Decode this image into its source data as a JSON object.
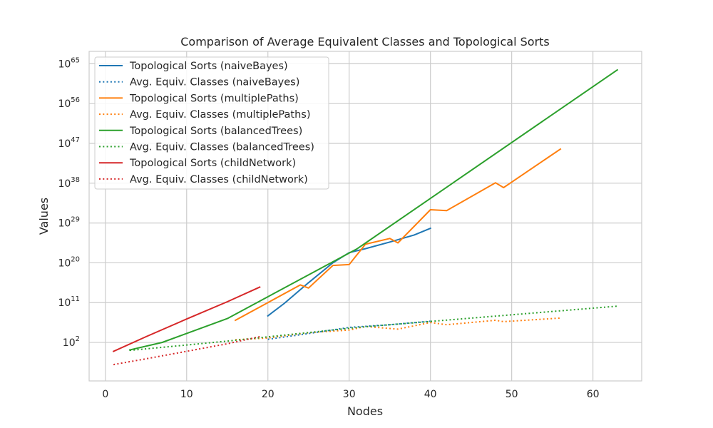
{
  "chart_data": {
    "type": "line",
    "title": "Comparison of Average Equivalent Classes and Topological Sorts",
    "xlabel": "Nodes",
    "ylabel": "Values",
    "yscale": "log",
    "xlim": [
      -2,
      66
    ],
    "ylim_log10": [
      -6.7,
      67.8
    ],
    "grid": true,
    "legend_position": "top-left",
    "xticks": [
      0,
      10,
      20,
      30,
      40,
      50,
      60
    ],
    "yticks": [
      {
        "exp": 2,
        "base": "10",
        "power": "2"
      },
      {
        "exp": 11,
        "base": "10",
        "power": "11"
      },
      {
        "exp": 20,
        "base": "10",
        "power": "20"
      },
      {
        "exp": 29,
        "base": "10",
        "power": "29"
      },
      {
        "exp": 38,
        "base": "10",
        "power": "38"
      },
      {
        "exp": 47,
        "base": "10",
        "power": "47"
      },
      {
        "exp": 56,
        "base": "10",
        "power": "56"
      },
      {
        "exp": 65,
        "base": "10",
        "power": "65"
      }
    ],
    "series": [
      {
        "name": "Topological Sorts (naiveBayes)",
        "color": "#1f77b4",
        "dash": "solid",
        "x": [
          20,
          22,
          25,
          28,
          30,
          32,
          35,
          38,
          40
        ],
        "log10_y": [
          8.0,
          10.8,
          15.5,
          20.0,
          22.3,
          23.2,
          24.7,
          26.3,
          27.8
        ]
      },
      {
        "name": "Avg. Equiv. Classes (naiveBayes)",
        "color": "#1f77b4",
        "dash": "dotted",
        "x": [
          20,
          25,
          30,
          35,
          40
        ],
        "log10_y": [
          2.7,
          4.0,
          5.4,
          6.0,
          6.8
        ]
      },
      {
        "name": "Topological Sorts (multiplePaths)",
        "color": "#ff7f0e",
        "dash": "solid",
        "x": [
          16,
          20,
          24,
          25,
          28,
          30,
          32,
          35,
          36,
          40,
          42,
          48,
          49,
          56
        ],
        "log10_y": [
          7.0,
          11.0,
          15.0,
          14.3,
          19.4,
          19.6,
          24.2,
          25.5,
          24.5,
          32.0,
          31.8,
          38.1,
          37.0,
          45.7
        ]
      },
      {
        "name": "Avg. Equiv. Classes (multiplePaths)",
        "color": "#ff7f0e",
        "dash": "dotted",
        "x": [
          16,
          20,
          25,
          30,
          32,
          36,
          40,
          42,
          48,
          49,
          56
        ],
        "log10_y": [
          2.6,
          3.0,
          4.2,
          4.8,
          5.6,
          5.0,
          6.5,
          6.0,
          7.0,
          6.7,
          7.5
        ]
      },
      {
        "name": "Topological Sorts (balancedTrees)",
        "color": "#2ca02c",
        "dash": "solid",
        "x": [
          3,
          7,
          15,
          31,
          63
        ],
        "log10_y": [
          0.3,
          2.0,
          7.4,
          23.2,
          63.6
        ]
      },
      {
        "name": "Avg. Equiv. Classes (balancedTrees)",
        "color": "#2ca02c",
        "dash": "dotted",
        "x": [
          3,
          7,
          15,
          31,
          63
        ],
        "log10_y": [
          0.2,
          0.9,
          2.3,
          5.4,
          10.2
        ]
      },
      {
        "name": "Topological Sorts (childNetwork)",
        "color": "#d62728",
        "dash": "solid",
        "x": [
          1,
          5,
          10,
          15,
          19
        ],
        "log10_y": [
          0.0,
          3.3,
          7.3,
          11.2,
          14.5
        ]
      },
      {
        "name": "Avg. Equiv. Classes (childNetwork)",
        "color": "#d62728",
        "dash": "dotted",
        "x": [
          1,
          5,
          10,
          15,
          19
        ],
        "log10_y": [
          -3.0,
          -1.7,
          0.0,
          1.7,
          3.3
        ]
      }
    ]
  }
}
